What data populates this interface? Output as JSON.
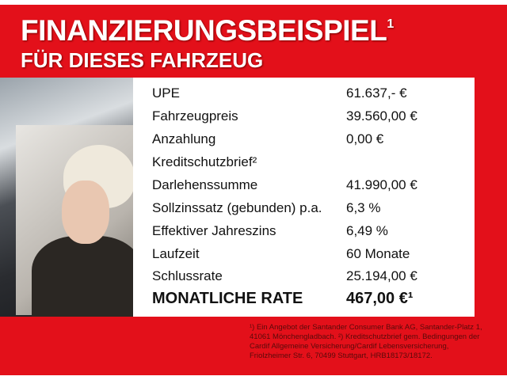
{
  "header": {
    "title": "FINANZIERUNGSBEISPIEL",
    "title_sup": "1",
    "subtitle": "FÜR DIESES FAHRZEUG"
  },
  "rows": [
    {
      "label": "UPE",
      "value": "61.637,- €"
    },
    {
      "label": "Fahrzeugpreis",
      "value": "39.560,00 €"
    },
    {
      "label": "Anzahlung",
      "value": "0,00 €"
    },
    {
      "label": "Kreditschutzbrief²",
      "value": ""
    },
    {
      "label": "Darlehenssumme",
      "value": "41.990,00 €"
    },
    {
      "label": "Sollzinssatz (gebunden) p.a.",
      "value": "6,3 %"
    },
    {
      "label": "Effektiver Jahreszins",
      "value": "6,49 %"
    },
    {
      "label": "Laufzeit",
      "value": "60 Monate"
    },
    {
      "label": "Schlussrate",
      "value": "25.194,00 €"
    }
  ],
  "total": {
    "label": "MONATLICHE RATE",
    "value": "467,00 €¹"
  },
  "footnote": "¹) Ein Angebot der Santander Consumer Bank AG, Santander-Platz 1, 41061 Mönchengladbach. ²) Kreditschutzbrief gem. Bedingungen der Cardif Allgemeine Versicherung/Cardif Lebensversicherung, Friolzheimer Str. 6, 70499 Stuttgart, HRB18173/18172.",
  "colors": {
    "brand_red": "#e3101a",
    "text": "#111111",
    "white": "#ffffff"
  }
}
